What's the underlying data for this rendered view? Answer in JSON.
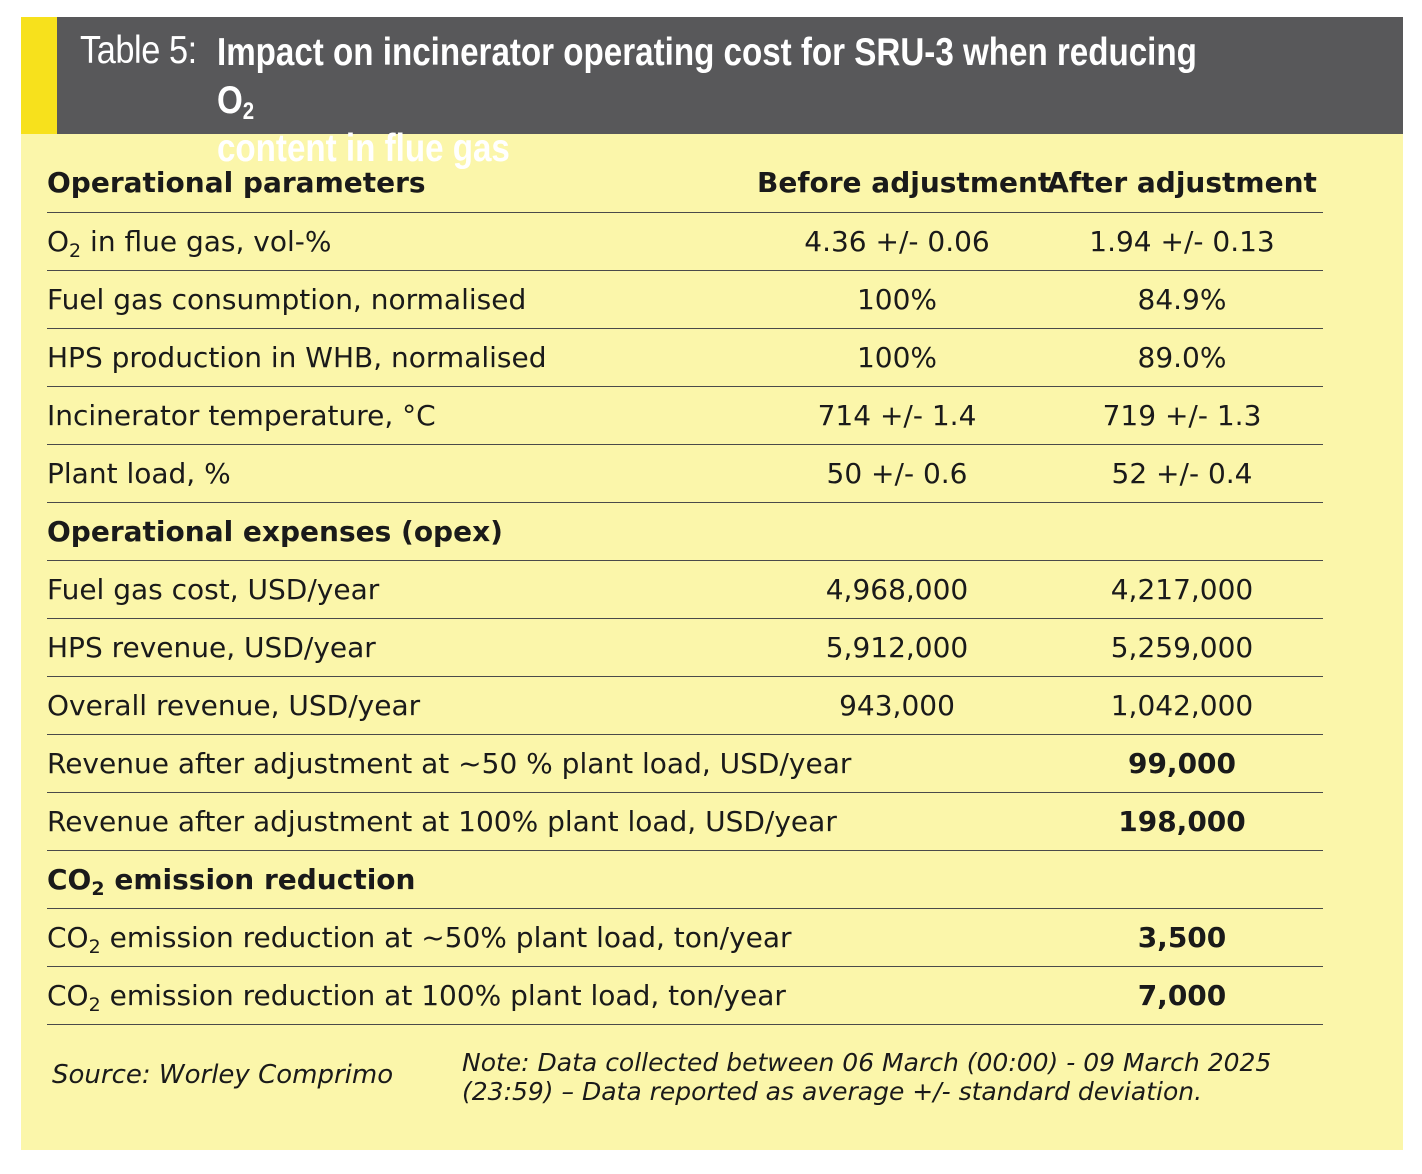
{
  "colors": {
    "header_bg": "#58585a",
    "accent": "#f7e11c",
    "panel_bg": "#fbf6aa"
  },
  "title": {
    "label": "Table 5:",
    "text_main": "Impact on incinerator operating cost for SRU-3 when reducing O",
    "text_sub": "2",
    "text_end": "content in flue gas"
  },
  "columns": {
    "parameter": "Operational parameters",
    "before": "Before adjustment",
    "after": "After adjustment"
  },
  "rows": [
    {
      "label": "O",
      "label_sub": "2",
      "label_rest": " in flue gas, vol-%",
      "before": "4.36 +/- 0.06",
      "after": "1.94 +/- 0.13"
    },
    {
      "label": "Fuel gas consumption, normalised",
      "before": "100%",
      "after": "84.9%"
    },
    {
      "label": "HPS production in WHB, normalised",
      "before": "100%",
      "after": "89.0%"
    },
    {
      "label": "Incinerator temperature, °C",
      "before": "714 +/- 1.4",
      "after": "719 +/- 1.3"
    },
    {
      "label": "Plant load, %",
      "before": "50 +/- 0.6",
      "after": "52 +/- 0.4"
    },
    {
      "section": "Operational expenses (opex)"
    },
    {
      "label": "Fuel gas cost, USD/year",
      "before": "4,968,000",
      "after": "4,217,000"
    },
    {
      "label": "HPS revenue, USD/year",
      "before": "5,912,000",
      "after": "5,259,000"
    },
    {
      "label": "Overall revenue, USD/year",
      "before": "943,000",
      "after": "1,042,000"
    },
    {
      "label": "Revenue after adjustment at ~50 % plant load, USD/year",
      "after": "99,000"
    },
    {
      "label": "Revenue after adjustment at 100% plant load, USD/year",
      "after": "198,000"
    },
    {
      "section_co2": "CO",
      "section_sub": "2",
      "section_rest": " emission reduction"
    },
    {
      "label": "CO",
      "label_sub": "2",
      "label_rest": " emission reduction at ~50% plant load, ton/year",
      "after": "3,500"
    },
    {
      "label": "CO",
      "label_sub": "2",
      "label_rest": " emission reduction at 100% plant load, ton/year",
      "after": "7,000"
    }
  ],
  "footer": {
    "source": "Source: Worley Comprimo",
    "note": "Note: Data collected between 06 March (00:00) - 09 March 2025 (23:59) – Data reported as average +/- standard deviation."
  }
}
